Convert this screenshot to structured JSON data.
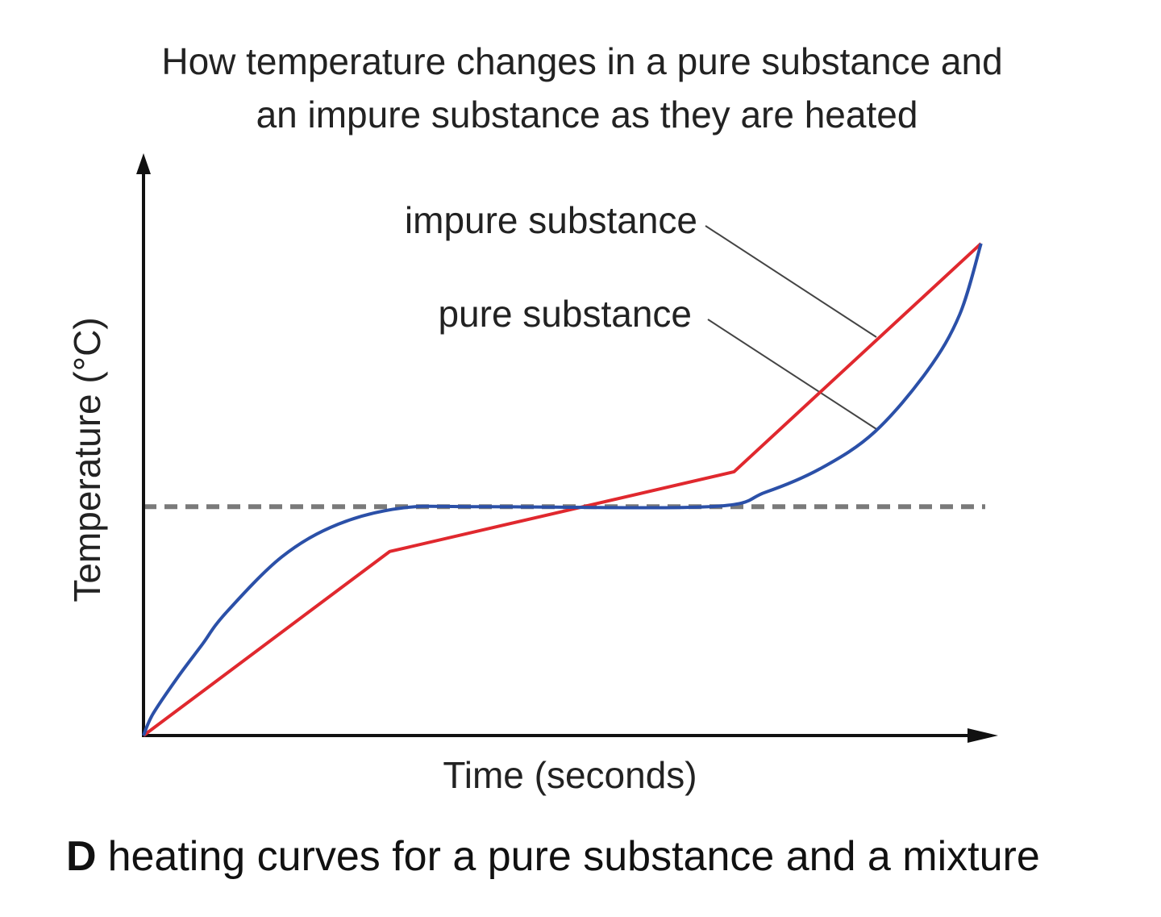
{
  "chart_data": {
    "type": "line",
    "title": [
      "How temperature changes in a pure substance and",
      "an impure substance as they are heated"
    ],
    "x_label": "Time (seconds)",
    "y_label": "Temperature (°C)",
    "xlim": [
      0,
      100
    ],
    "ylim": [
      0,
      100
    ],
    "reference_line": 39.3,
    "reference_color": "#7a7a7a",
    "series": [
      {
        "name": "impure substance",
        "color": "#e0282e",
        "x": [
          0,
          28.8,
          69.1,
          98
        ],
        "values": [
          0,
          31.6,
          45.3,
          84.5
        ]
      },
      {
        "name": "pure substance",
        "color": "#2b50a8",
        "x": [
          0,
          1.1,
          4,
          6.8,
          9.6,
          16.2,
          22.8,
          30.4,
          39.8,
          66.2,
          72.8,
          79.4,
          85.6,
          91.7,
          95.5,
          98
        ],
        "values": [
          0,
          3.7,
          10,
          15.5,
          21,
          30.7,
          36.3,
          39.1,
          39.3,
          39.3,
          41.8,
          46,
          52.2,
          62.6,
          72.3,
          84.5
        ]
      }
    ],
    "caption": {
      "label": "D",
      "text": "heating curves for a pure substance and a mixture"
    }
  }
}
